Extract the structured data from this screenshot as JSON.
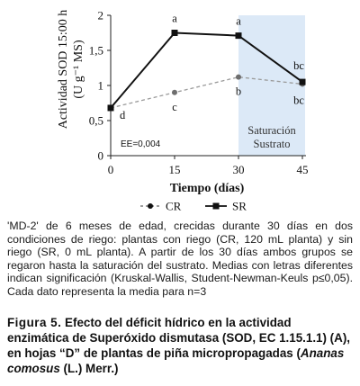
{
  "chart_data": {
    "type": "line",
    "x": [
      0,
      15,
      30,
      45
    ],
    "xlabel": "Tiempo (días)",
    "ylabel_line1": "Actividad SOD 15:00 h",
    "ylabel_line2": "(U g⁻¹ MS)",
    "ylim": [
      0,
      2
    ],
    "yticks": [
      "0",
      "0,5",
      "1",
      "1,5",
      "2"
    ],
    "xticks": [
      "0",
      "15",
      "30",
      "45"
    ],
    "series": [
      {
        "name": "SR",
        "values": [
          0.68,
          1.75,
          1.71,
          1.05
        ],
        "style": "solid",
        "marker": "square",
        "color": "#000000"
      },
      {
        "name": "CR",
        "values": [
          0.68,
          0.9,
          1.12,
          1.02
        ],
        "style": "dashed",
        "marker": "circle",
        "color": "#8c8c8c"
      }
    ],
    "letters": {
      "SR": [
        "",
        "a",
        "a",
        "bc"
      ],
      "CR": [
        "d",
        "c",
        "b",
        "bc"
      ]
    },
    "shaded_region": {
      "x_from": 30,
      "x_to": 45,
      "label_line1": "Saturación",
      "label_line2": "Sustrato",
      "color": "#dce9f7"
    },
    "error_note": "EE=0,004",
    "legend_placement": "bottom",
    "legend": [
      {
        "name": "CR",
        "symbol": "- ● -"
      },
      {
        "name": "SR",
        "symbol": "—■—"
      }
    ]
  },
  "caption": "'MD-2' de 6 meses de edad, crecidas durante 30 días en dos condiciones de riego: plantas con riego (CR, 120 mL planta) y sin riego (SR, 0 mL planta). A partir de los 30 días ambos grupos se regaron hasta la saturación del sustrato. Medias con letras diferentes indican significación (Kruskal-Wallis, Student-Newman-Keuls p≤0,05). Cada dato representa la media para n=3",
  "figure": {
    "label": "Figura 5.",
    "title_part1": "Efecto del déficit hídrico en la actividad enzimática de Superóxido dismutasa (SOD, EC 1.15.1.1) (A), en hojas “D” de plantas de piña micropropagadas (",
    "title_italic": "Ananas comosus",
    "title_part2": " (L.) Merr.)"
  }
}
